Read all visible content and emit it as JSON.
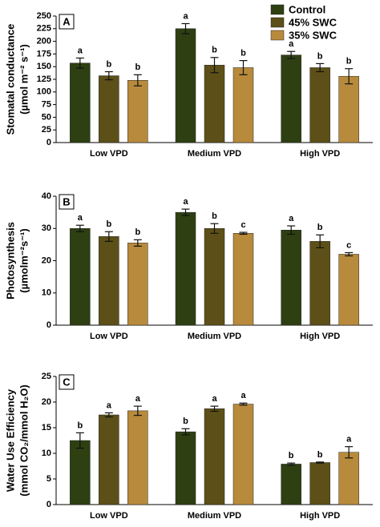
{
  "chart_data": [
    {
      "type": "bar",
      "panel": "A",
      "ylabel": [
        "Stomatal conductance",
        "(µmol m⁻² s⁻¹)"
      ],
      "categories": [
        "Low VPD",
        "Medium VPD",
        "High VPD"
      ],
      "series": [
        {
          "name": "Control",
          "color": "#2e4012",
          "values": [
            157,
            225,
            173
          ],
          "errors": [
            10,
            10,
            7
          ],
          "letters": [
            "a",
            "a",
            "a"
          ]
        },
        {
          "name": "45% SWC",
          "color": "#5c5018",
          "values": [
            132,
            153,
            148
          ],
          "errors": [
            8,
            15,
            8
          ],
          "letters": [
            "b",
            "b",
            "b"
          ]
        },
        {
          "name": "35% SWC",
          "color": "#b88a3c",
          "values": [
            123,
            148,
            131
          ],
          "errors": [
            11,
            14,
            15
          ],
          "letters": [
            "b",
            "b",
            "b"
          ]
        }
      ],
      "ylim": [
        0,
        250
      ],
      "yticks": [
        0,
        25,
        50,
        75,
        100,
        125,
        150,
        175,
        200,
        225,
        250
      ],
      "legend": "top-right"
    },
    {
      "type": "bar",
      "panel": "B",
      "ylabel": [
        "Photosynthesis",
        "(µmolm⁻²s⁻¹)"
      ],
      "categories": [
        "Low VPD",
        "Medium VPD",
        "High VPD"
      ],
      "series": [
        {
          "color": "#2e4012",
          "values": [
            30,
            35,
            29.5
          ],
          "errors": [
            1,
            1,
            1.3
          ],
          "letters": [
            "a",
            "a",
            "a"
          ]
        },
        {
          "color": "#5c5018",
          "values": [
            27.5,
            30,
            26
          ],
          "errors": [
            1.5,
            1.5,
            2
          ],
          "letters": [
            "b",
            "b",
            "b"
          ]
        },
        {
          "color": "#b88a3c",
          "values": [
            25.5,
            28.5,
            22
          ],
          "errors": [
            1,
            0.3,
            0.5
          ],
          "letters": [
            "b",
            "c",
            "c"
          ]
        }
      ],
      "ylim": [
        0,
        40
      ],
      "yticks": [
        0,
        10,
        20,
        30,
        40
      ]
    },
    {
      "type": "bar",
      "panel": "C",
      "ylabel": [
        "Water Use Efficiency",
        "(mmol CO₂/mmol H₂O)"
      ],
      "categories": [
        "Low VPD",
        "Medium VPD",
        "High VPD"
      ],
      "series": [
        {
          "color": "#2e4012",
          "values": [
            12.5,
            14.2,
            7.9
          ],
          "errors": [
            1.5,
            0.6,
            0.2
          ],
          "letters": [
            "b",
            "b",
            "b"
          ]
        },
        {
          "color": "#5c5018",
          "values": [
            17.5,
            18.7,
            8.2
          ],
          "errors": [
            0.4,
            0.5,
            0.1
          ],
          "letters": [
            "a",
            "a",
            "b"
          ]
        },
        {
          "color": "#b88a3c",
          "values": [
            18.3,
            19.6,
            10.2
          ],
          "errors": [
            0.9,
            0.2,
            1.1
          ],
          "letters": [
            "a",
            "a",
            "a"
          ]
        }
      ],
      "ylim": [
        0,
        25
      ],
      "yticks": [
        0,
        5,
        10,
        15,
        20,
        25
      ]
    }
  ]
}
